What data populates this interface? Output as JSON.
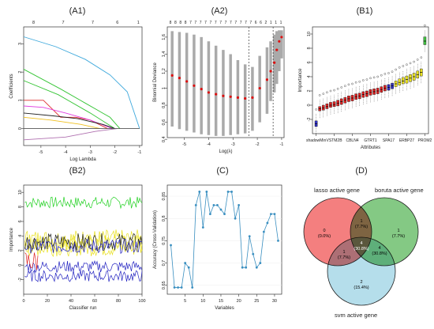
{
  "panels": {
    "a1": "(A1)",
    "a2": "(A2)",
    "b1": "(B1)",
    "b2": "(B2)",
    "c": "(C)",
    "d": "(D)"
  },
  "chart_data": [
    {
      "id": "A1",
      "type": "line",
      "title": "(A1)",
      "xlabel": "Log Lambda",
      "ylabel": "Coefficients",
      "xlim": [
        -5.7,
        -0.9
      ],
      "ylim": [
        -0.6,
        3.6
      ],
      "xticks": [
        -5,
        -4,
        -3,
        -2,
        -1
      ],
      "yticks": [
        0,
        1,
        2,
        3
      ],
      "top_ticks": [
        {
          "x": -5.3,
          "label": "8"
        },
        {
          "x": -4.1,
          "label": "7"
        },
        {
          "x": -2.9,
          "label": "7"
        },
        {
          "x": -1.9,
          "label": "6"
        },
        {
          "x": -1.05,
          "label": "1"
        }
      ],
      "series": [
        {
          "color": "#3fa9dc",
          "x": [
            -5.7,
            -4.4,
            -3.2,
            -2.2,
            -1.5,
            -1.0
          ],
          "y": [
            3.25,
            2.9,
            2.45,
            1.9,
            1.3,
            0.0
          ]
        },
        {
          "color": "#33c433",
          "x": [
            -5.7,
            -4.2,
            -3.2,
            -2.2,
            -1.8
          ],
          "y": [
            2.1,
            1.4,
            0.9,
            0.4,
            0.0
          ]
        },
        {
          "color": "#33c433",
          "x": [
            -5.7,
            -4.3,
            -3.0,
            -2.0
          ],
          "y": [
            1.7,
            1.2,
            0.55,
            0.0
          ]
        },
        {
          "color": "#dd2b2b",
          "x": [
            -5.7,
            -4.9,
            -4.2,
            -3.6,
            -3.0,
            -2.3
          ],
          "y": [
            1.0,
            1.0,
            0.4,
            0.4,
            0.3,
            0.0
          ]
        },
        {
          "color": "#e040e0",
          "x": [
            -5.7,
            -4.9,
            -4.0,
            -3.0,
            -2.1
          ],
          "y": [
            0.8,
            0.75,
            0.55,
            0.3,
            0.0
          ]
        },
        {
          "color": "#222222",
          "x": [
            -5.7,
            -4.5,
            -3.5,
            -2.5,
            -2.0
          ],
          "y": [
            0.55,
            0.45,
            0.35,
            0.15,
            0.0
          ]
        },
        {
          "color": "#f0c020",
          "x": [
            -5.7,
            -4.6,
            -3.4,
            -2.6
          ],
          "y": [
            0.4,
            0.3,
            0.15,
            0.0
          ]
        },
        {
          "color": "#b070b0",
          "x": [
            -5.7,
            -4.0,
            -2.8,
            -1.9
          ],
          "y": [
            -0.4,
            -0.3,
            -0.1,
            0.0
          ]
        },
        {
          "color": "#555555",
          "x": [
            -5.7,
            -1.0
          ],
          "y": [
            0.0,
            0.0
          ]
        }
      ]
    },
    {
      "id": "A2",
      "type": "scatter",
      "title": "(A2)",
      "xlabel": "Log(λ)",
      "ylabel": "Binomial Deviance",
      "xlim": [
        -5.7,
        -0.9
      ],
      "ylim": [
        0.42,
        1.72
      ],
      "xticks": [
        -5,
        -4,
        -3,
        -2,
        -1
      ],
      "yticks": [
        0.4,
        0.6,
        0.8,
        1.0,
        1.2,
        1.4,
        1.6
      ],
      "top_labels": [
        "8",
        "8",
        "8",
        "8",
        "7",
        "7",
        "7",
        "7",
        "7",
        "7",
        "7",
        "7",
        "7",
        "7",
        "7",
        "7",
        "7",
        "6",
        "6",
        "2",
        "1",
        "1",
        "1"
      ],
      "vlines": [
        -2.35,
        -1.35
      ],
      "x": [
        -5.5,
        -5.2,
        -4.9,
        -4.6,
        -4.3,
        -4.0,
        -3.7,
        -3.4,
        -3.1,
        -2.8,
        -2.5,
        -2.2,
        -1.9,
        -1.6,
        -1.45,
        -1.3,
        -1.2,
        -1.1,
        -1.0
      ],
      "y": [
        1.15,
        1.12,
        1.08,
        1.03,
        0.99,
        0.95,
        0.93,
        0.91,
        0.9,
        0.89,
        0.88,
        0.89,
        1.0,
        1.1,
        1.2,
        1.3,
        1.45,
        1.55,
        1.6
      ],
      "err_lo": [
        0.55,
        0.52,
        0.5,
        0.48,
        0.46,
        0.45,
        0.44,
        0.44,
        0.45,
        0.46,
        0.47,
        0.5,
        0.6,
        0.7,
        0.85,
        0.95,
        1.05,
        1.2,
        1.35
      ],
      "err_hi": [
        1.67,
        1.66,
        1.65,
        1.63,
        1.6,
        1.55,
        1.5,
        1.45,
        1.4,
        1.33,
        1.28,
        1.25,
        1.38,
        1.48,
        1.55,
        1.63,
        1.67,
        1.68,
        1.68
      ]
    },
    {
      "id": "B1",
      "type": "bar",
      "title": "(B1)",
      "xlabel": "Attributes",
      "ylabel": "Importance",
      "ylim": [
        -4,
        11
      ],
      "yticks": [
        -2,
        0,
        2,
        4,
        6,
        8,
        10
      ],
      "tick_labels": [
        "shadowMin",
        "VSTM2B",
        "CBLN4",
        "GTRT1",
        "SPA17",
        "ERBP27",
        "PROM2"
      ],
      "boxes": [
        {
          "c": "#3030c0",
          "med": -2.6,
          "q1": -3.0,
          "q3": -2.2
        },
        {
          "c": "#dd2020",
          "med": -0.5,
          "q1": -0.8,
          "q3": -0.2
        },
        {
          "c": "#dd2020",
          "med": -0.4,
          "q1": -0.7,
          "q3": 0.0
        },
        {
          "c": "#dd2020",
          "med": -0.2,
          "q1": -0.5,
          "q3": 0.2
        },
        {
          "c": "#dd2020",
          "med": 0.0,
          "q1": -0.3,
          "q3": 0.4
        },
        {
          "c": "#dd2020",
          "med": 0.1,
          "q1": -0.2,
          "q3": 0.5
        },
        {
          "c": "#dd2020",
          "med": 0.3,
          "q1": -0.1,
          "q3": 0.7
        },
        {
          "c": "#dd2020",
          "med": 0.5,
          "q1": 0.1,
          "q3": 0.9
        },
        {
          "c": "#dd2020",
          "med": 0.7,
          "q1": 0.3,
          "q3": 1.1
        },
        {
          "c": "#dd2020",
          "med": 0.9,
          "q1": 0.5,
          "q3": 1.3
        },
        {
          "c": "#dd2020",
          "med": 1.0,
          "q1": 0.6,
          "q3": 1.4
        },
        {
          "c": "#dd2020",
          "med": 1.2,
          "q1": 0.8,
          "q3": 1.6
        },
        {
          "c": "#dd2020",
          "med": 1.3,
          "q1": 0.9,
          "q3": 1.7
        },
        {
          "c": "#dd2020",
          "med": 1.5,
          "q1": 1.1,
          "q3": 1.9
        },
        {
          "c": "#dd2020",
          "med": 1.6,
          "q1": 1.2,
          "q3": 2.0
        },
        {
          "c": "#dd2020",
          "med": 1.8,
          "q1": 1.4,
          "q3": 2.2
        },
        {
          "c": "#dd2020",
          "med": 1.9,
          "q1": 1.5,
          "q3": 2.3
        },
        {
          "c": "#dd2020",
          "med": 2.0,
          "q1": 1.6,
          "q3": 2.4
        },
        {
          "c": "#dd2020",
          "med": 2.2,
          "q1": 1.8,
          "q3": 2.6
        },
        {
          "c": "#dd2020",
          "med": 2.4,
          "q1": 2.0,
          "q3": 2.8
        },
        {
          "c": "#3030c0",
          "med": 2.5,
          "q1": 2.1,
          "q3": 2.9
        },
        {
          "c": "#3030c0",
          "med": 2.7,
          "q1": 2.3,
          "q3": 3.1
        },
        {
          "c": "#e8e020",
          "med": 3.0,
          "q1": 2.6,
          "q3": 3.4
        },
        {
          "c": "#e8e020",
          "med": 3.2,
          "q1": 2.8,
          "q3": 3.7
        },
        {
          "c": "#e8e020",
          "med": 3.4,
          "q1": 3.0,
          "q3": 3.9
        },
        {
          "c": "#e8e020",
          "med": 3.6,
          "q1": 3.1,
          "q3": 4.1
        },
        {
          "c": "#e8e020",
          "med": 3.8,
          "q1": 3.3,
          "q3": 4.3
        },
        {
          "c": "#e8e020",
          "med": 4.0,
          "q1": 3.5,
          "q3": 4.5
        },
        {
          "c": "#e8e020",
          "med": 4.3,
          "q1": 3.8,
          "q3": 4.8
        },
        {
          "c": "#e8e020",
          "med": 4.6,
          "q1": 4.1,
          "q3": 5.1
        },
        {
          "c": "#40c040",
          "med": 9.0,
          "q1": 8.5,
          "q3": 9.6
        }
      ]
    },
    {
      "id": "B2",
      "type": "line",
      "title": "(B2)",
      "xlabel": "Classifier run",
      "ylabel": "Importance",
      "xlim": [
        0,
        100
      ],
      "ylim": [
        -4,
        11
      ],
      "xticks": [
        0,
        20,
        40,
        60,
        80,
        100
      ],
      "yticks": [
        -2,
        0,
        2,
        4,
        6,
        8,
        10
      ],
      "series": [
        {
          "color": "#20d020",
          "base": 8.6,
          "amp": 0.8
        },
        {
          "color": "#e8e020",
          "base": 3.6,
          "amp": 1.3
        },
        {
          "color": "#e8e020",
          "base": 3.0,
          "amp": 1.3
        },
        {
          "color": "#e8e020",
          "base": 2.4,
          "amp": 1.2
        },
        {
          "color": "#222222",
          "base": 3.2,
          "amp": 1.2
        },
        {
          "color": "#2020c0",
          "base": 2.6,
          "amp": 1.0
        },
        {
          "color": "#2020c0",
          "base": -0.2,
          "amp": 0.8
        },
        {
          "color": "#2020c0",
          "base": -1.5,
          "amp": 0.8
        },
        {
          "color": "#dd2020",
          "base": 0.5,
          "amp": 1.6
        }
      ]
    },
    {
      "id": "C",
      "type": "line",
      "title": "(C)",
      "xlabel": "Variables",
      "ylabel": "Accuracy (Cross-Validation)",
      "xlim": [
        0,
        32
      ],
      "ylim": [
        0.63,
        0.875
      ],
      "xticks": [
        5,
        10,
        15,
        20,
        25,
        30
      ],
      "yticks": [
        0.65,
        0.7,
        0.75,
        0.8,
        0.85
      ],
      "x": [
        1,
        2,
        3,
        4,
        5,
        6,
        7,
        8,
        9,
        10,
        11,
        12,
        13,
        14,
        15,
        16,
        17,
        18,
        19,
        20,
        21,
        22,
        23,
        24,
        25,
        26,
        27,
        28,
        29,
        30,
        31
      ],
      "y": [
        0.74,
        0.645,
        0.645,
        0.645,
        0.7,
        0.69,
        0.645,
        0.83,
        0.86,
        0.78,
        0.86,
        0.81,
        0.83,
        0.83,
        0.82,
        0.81,
        0.86,
        0.86,
        0.8,
        0.83,
        0.69,
        0.69,
        0.76,
        0.72,
        0.69,
        0.7,
        0.77,
        0.79,
        0.81,
        0.81,
        0.75
      ]
    }
  ],
  "venn": {
    "labels": {
      "lasso": "lasso active gene",
      "boruta": "boruta active gene",
      "svm": "svm active gene"
    },
    "regions": {
      "lasso_only": {
        "count": "0",
        "pct": "(0.0%)"
      },
      "boruta_only": {
        "count": "1",
        "pct": "(7.7%)"
      },
      "lasso_boruta": {
        "count": "1",
        "pct": "(7.7%)"
      },
      "lasso_svm": {
        "count": "1",
        "pct": "(7.7%)"
      },
      "boruta_svm": {
        "count": "4",
        "pct": "(30.8%)"
      },
      "all": {
        "count": "4",
        "pct": "(30.8%)"
      },
      "svm_only": {
        "count": "2",
        "pct": "(15.4%)"
      }
    },
    "colors": {
      "lasso": "#f26868",
      "boruta": "#6fbf6f",
      "svm": "#a8d8e8",
      "center": "#806040"
    }
  }
}
